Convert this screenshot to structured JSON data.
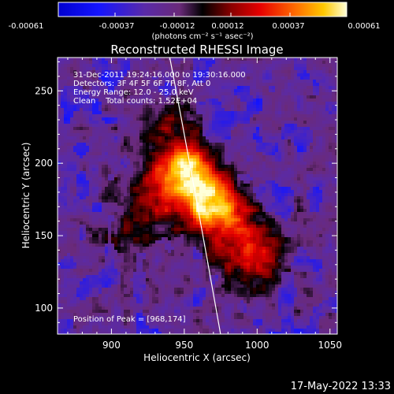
{
  "chart_data": {
    "type": "heatmap",
    "title": "Reconstructed RHESSI Image",
    "xlabel": "Heliocentric X (arcsec)",
    "ylabel": "Heliocentric Y (arcsec)",
    "xlim": [
      863,
      1055
    ],
    "ylim": [
      82,
      273
    ],
    "xticks": [
      900,
      950,
      1000,
      1050
    ],
    "yticks": [
      100,
      150,
      200,
      250
    ],
    "colorbar": {
      "min": -0.00061,
      "max": 0.00061,
      "ticks": [
        -0.00061,
        -0.00037,
        -0.00012,
        0.00012,
        0.00037,
        0.00061
      ],
      "tick_labels": [
        "-0.00061",
        "-0.00037",
        "-0.00012",
        "0.00012",
        "0.00037",
        "0.00061"
      ],
      "unit_label": "(photons cm⁻² s⁻¹ asec⁻²)"
    },
    "annotations": [
      "31-Dec-2011 19:24:16.000 to 19:30:16.000",
      "Detectors: 3F 4F 5F 6F 7F 8F, Att 0",
      "Energy Range: 12.0 - 25.0 keV",
      "Clean    Total counts: 1.52E+04"
    ],
    "peak_label": "Position of Peak = [968,174]",
    "peak": [
      968,
      174
    ],
    "sources": [
      {
        "x": 968,
        "y": 174,
        "sigma": 13,
        "amp": 1.0
      },
      {
        "x": 951,
        "y": 198,
        "sigma": 12,
        "amp": 0.85
      },
      {
        "x": 936,
        "y": 183,
        "sigma": 17,
        "amp": 0.55
      },
      {
        "x": 985,
        "y": 152,
        "sigma": 19,
        "amp": 0.45
      },
      {
        "x": 1000,
        "y": 133,
        "sigma": 15,
        "amp": 0.35
      },
      {
        "x": 942,
        "y": 226,
        "sigma": 14,
        "amp": 0.3
      },
      {
        "x": 913,
        "y": 150,
        "sigma": 16,
        "amp": 0.28
      }
    ],
    "limb": {
      "x_at_ymax": 942,
      "x_at_ymin": 974
    },
    "date_stamp": "17-May-2022 13:33"
  }
}
